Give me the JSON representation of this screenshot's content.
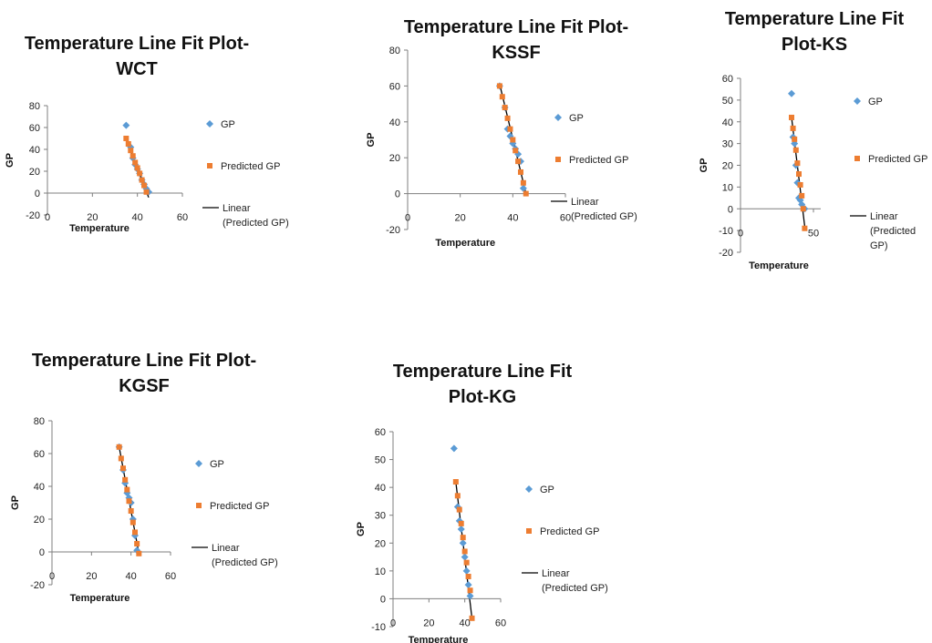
{
  "colors": {
    "gp": "#5B9BD5",
    "predicted": "#ED7D31",
    "line": "#000000",
    "axis": "#7f7f7f"
  },
  "chart_data": [
    {
      "type": "scatter",
      "title_lines": [
        "Temperature Line Fit  Plot-",
        "WCT"
      ],
      "xlabel": "Temperature",
      "ylabel": "GP",
      "xlim": [
        0,
        60
      ],
      "ylim": [
        -20,
        80
      ],
      "xticks": [
        "0",
        "20",
        "40",
        "60"
      ],
      "yticks": [
        "-20",
        "0",
        "20",
        "40",
        "60",
        "80"
      ],
      "legend": [
        "GP",
        "Predicted GP",
        "Linear",
        "(Predicted GP)"
      ],
      "legend_position": "right",
      "series": [
        {
          "name": "GP",
          "marker": "diamond",
          "x": [
            35,
            37,
            38,
            39,
            40,
            41,
            42,
            43,
            44,
            45
          ],
          "y": [
            62,
            42,
            32,
            26,
            22,
            18,
            12,
            8,
            4,
            1
          ]
        },
        {
          "name": "Predicted GP",
          "marker": "square",
          "x": [
            35,
            36,
            37,
            38,
            39,
            40,
            41,
            42,
            43,
            44
          ],
          "y": [
            50,
            45,
            39,
            34,
            28,
            23,
            18,
            12,
            7,
            1
          ]
        }
      ],
      "line": {
        "from": [
          35,
          50
        ],
        "to": [
          45,
          -4
        ]
      }
    },
    {
      "type": "scatter",
      "title_lines": [
        "Temperature Line Fit  Plot-",
        "KSSF"
      ],
      "xlabel": "Temperature",
      "ylabel": "GP",
      "xlim": [
        0,
        60
      ],
      "ylim": [
        -20,
        80
      ],
      "xticks": [
        "0",
        "20",
        "40",
        "60"
      ],
      "yticks": [
        "-20",
        "0",
        "20",
        "40",
        "60",
        "80"
      ],
      "legend": [
        "GP",
        "Predicted GP",
        "Linear",
        "(Predicted GP)"
      ],
      "legend_position": "right",
      "series": [
        {
          "name": "GP",
          "marker": "diamond",
          "x": [
            35,
            37,
            38,
            39,
            40,
            41,
            42,
            43,
            44
          ],
          "y": [
            60,
            48,
            36,
            32,
            28,
            25,
            22,
            18,
            3
          ]
        },
        {
          "name": "Predicted GP",
          "marker": "square",
          "x": [
            35,
            36,
            37,
            38,
            39,
            40,
            41,
            42,
            43,
            44,
            45
          ],
          "y": [
            60,
            54,
            48,
            42,
            36,
            30,
            24,
            18,
            12,
            6,
            0
          ]
        }
      ],
      "line": {
        "from": [
          35,
          61
        ],
        "to": [
          45,
          0
        ]
      }
    },
    {
      "type": "scatter",
      "title_lines": [
        "Temperature Line Fit",
        "Plot-KS"
      ],
      "xlabel": "Temperature",
      "ylabel": "GP",
      "xlim": [
        0,
        55
      ],
      "ylim": [
        -20,
        60
      ],
      "xticks": [
        "0",
        "50"
      ],
      "yticks": [
        "-20",
        "-10",
        "0",
        "10",
        "20",
        "30",
        "40",
        "50",
        "60"
      ],
      "legend": [
        "GP",
        "Predicted GP",
        "Linear",
        "(Predicted",
        "GP)"
      ],
      "legend_position": "right",
      "series": [
        {
          "name": "GP",
          "marker": "diamond",
          "x": [
            35,
            36,
            37,
            38,
            39,
            40,
            41,
            42,
            44
          ],
          "y": [
            53,
            33,
            30,
            20,
            12,
            5,
            4,
            2,
            0
          ]
        },
        {
          "name": "Predicted GP",
          "marker": "square",
          "x": [
            35,
            36,
            37,
            38,
            39,
            40,
            41,
            42,
            43,
            44
          ],
          "y": [
            42,
            37,
            32,
            27,
            21,
            16,
            11,
            6,
            0,
            -9
          ]
        }
      ],
      "line": {
        "from": [
          35,
          42
        ],
        "to": [
          44,
          -8
        ]
      }
    },
    {
      "type": "scatter",
      "title_lines": [
        "Temperature Line Fit  Plot-",
        "KGSF"
      ],
      "xlabel": "Temperature",
      "ylabel": "GP",
      "xlim": [
        0,
        60
      ],
      "ylim": [
        -20,
        80
      ],
      "xticks": [
        "0",
        "20",
        "40",
        "60"
      ],
      "yticks": [
        "-20",
        "0",
        "20",
        "40",
        "60",
        "80"
      ],
      "legend": [
        "GP",
        "Predicted GP",
        "Linear",
        "(Predicted GP)"
      ],
      "legend_position": "right",
      "series": [
        {
          "name": "GP",
          "marker": "diamond",
          "x": [
            34,
            36,
            37,
            38,
            39,
            40,
            41,
            42,
            43
          ],
          "y": [
            64,
            50,
            42,
            36,
            33,
            30,
            20,
            10,
            1
          ]
        },
        {
          "name": "Predicted GP",
          "marker": "square",
          "x": [
            34,
            35,
            36,
            37,
            38,
            39,
            40,
            41,
            42,
            43,
            44
          ],
          "y": [
            64,
            57,
            51,
            44,
            38,
            31,
            25,
            18,
            12,
            5,
            -1
          ]
        }
      ],
      "line": {
        "from": [
          34,
          64
        ],
        "to": [
          44,
          -1
        ]
      }
    },
    {
      "type": "scatter",
      "title_lines": [
        "Temperature Line Fit",
        "Plot-KG"
      ],
      "xlabel": "Temperature",
      "ylabel": "GP",
      "xlim": [
        0,
        60
      ],
      "ylim": [
        -10,
        60
      ],
      "xticks": [
        "0",
        "20",
        "40",
        "60"
      ],
      "yticks": [
        "-10",
        "0",
        "10",
        "20",
        "30",
        "40",
        "50",
        "60"
      ],
      "legend": [
        "GP",
        "Predicted GP",
        "Linear",
        "(Predicted GP)"
      ],
      "legend_position": "right",
      "series": [
        {
          "name": "GP",
          "marker": "diamond",
          "x": [
            34,
            36,
            37,
            38,
            39,
            40,
            41,
            42,
            43
          ],
          "y": [
            54,
            33,
            28,
            25,
            20,
            15,
            10,
            5,
            1
          ]
        },
        {
          "name": "Predicted GP",
          "marker": "square",
          "x": [
            35,
            36,
            37,
            38,
            39,
            40,
            41,
            42,
            43,
            44
          ],
          "y": [
            42,
            37,
            32,
            27,
            22,
            17,
            13,
            8,
            3,
            -7
          ]
        }
      ],
      "line": {
        "from": [
          35,
          42
        ],
        "to": [
          44,
          -7
        ]
      }
    }
  ]
}
